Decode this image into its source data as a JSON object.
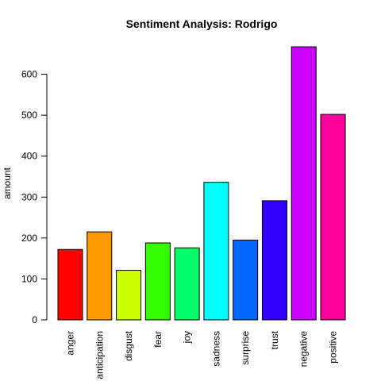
{
  "chart_data": {
    "type": "bar",
    "title": "Sentiment Analysis: Rodrigo",
    "xlabel": "",
    "ylabel": "amount",
    "categories": [
      "anger",
      "anticipation",
      "disgust",
      "fear",
      "joy",
      "sadness",
      "surprise",
      "trust",
      "negative",
      "positive"
    ],
    "values": [
      172,
      215,
      121,
      188,
      176,
      336,
      195,
      291,
      667,
      502
    ],
    "colors": [
      "#FF0000",
      "#FF9900",
      "#CCFF00",
      "#33FF00",
      "#00FF66",
      "#00FFFF",
      "#0066FF",
      "#3300FF",
      "#CC00FF",
      "#FF0099"
    ],
    "yticks": [
      0,
      100,
      200,
      300,
      400,
      500,
      600
    ],
    "ylim": [
      0,
      667
    ],
    "grid": false,
    "legend": "none"
  }
}
